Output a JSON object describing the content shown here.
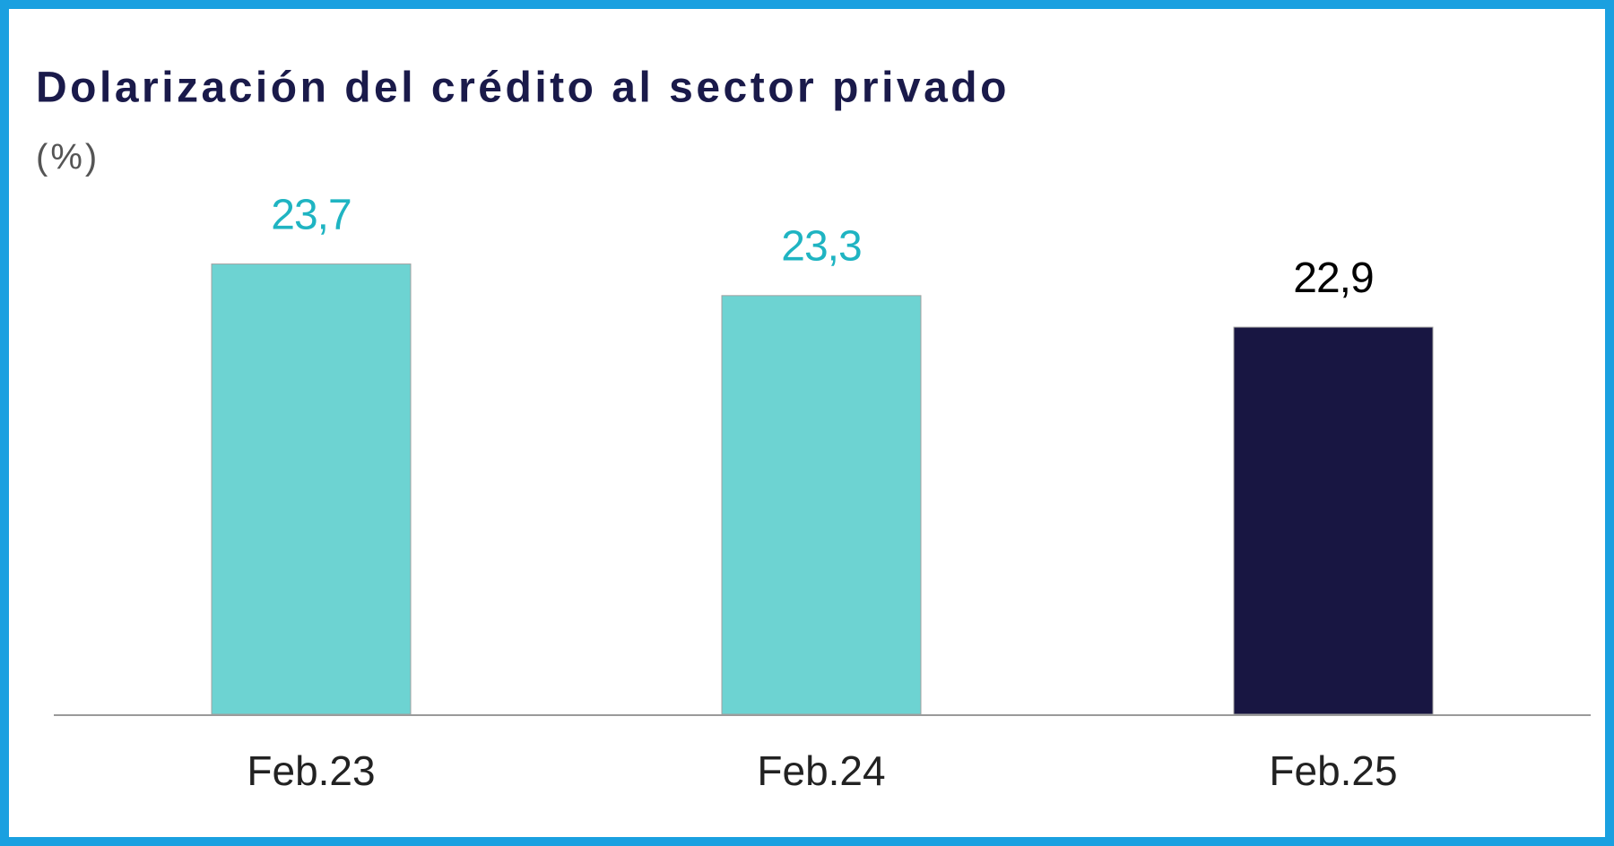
{
  "chart_data": {
    "type": "bar",
    "title": "Dolarización del crédito al sector privado",
    "subtitle": "(%)",
    "categories": [
      "Feb.23",
      "Feb.24",
      "Feb.25"
    ],
    "values": [
      23.7,
      23.3,
      22.9
    ],
    "value_labels": [
      "23,7",
      "23,3",
      "22,9"
    ],
    "colors": [
      "#6dd3d2",
      "#6dd3d2",
      "#181642"
    ],
    "label_colors": [
      "#1fb4c2",
      "#1fb4c2",
      "#000000"
    ],
    "ylim": [
      18,
      25
    ]
  }
}
